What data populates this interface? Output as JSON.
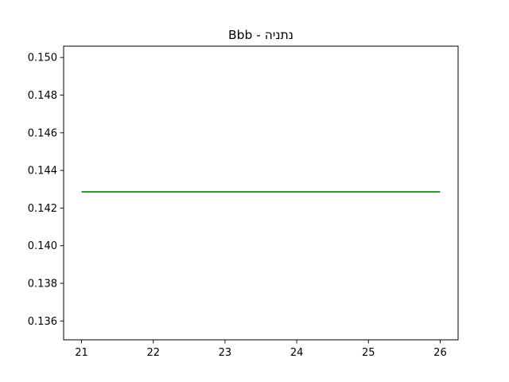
{
  "chart_data": {
    "type": "line",
    "title": "Bbb - נתניה",
    "xlabel": "",
    "ylabel": "",
    "x": [
      21,
      22,
      23,
      24,
      25,
      26
    ],
    "series": [
      {
        "values": [
          0.14286,
          0.14286,
          0.14286,
          0.14286,
          0.14286,
          0.14286
        ],
        "color": "#008000"
      }
    ],
    "xlim": [
      20.75,
      26.25
    ],
    "ylim": [
      0.135,
      0.1506
    ],
    "xticks": [
      21,
      22,
      23,
      24,
      25,
      26
    ],
    "xtick_labels": [
      "21",
      "22",
      "23",
      "24",
      "25",
      "26"
    ],
    "yticks": [
      0.136,
      0.138,
      0.14,
      0.142,
      0.144,
      0.146,
      0.148,
      0.15
    ],
    "ytick_labels": [
      "0.136",
      "0.138",
      "0.140",
      "0.142",
      "0.144",
      "0.146",
      "0.148",
      "0.150"
    ],
    "grid": false,
    "legend": "none"
  }
}
